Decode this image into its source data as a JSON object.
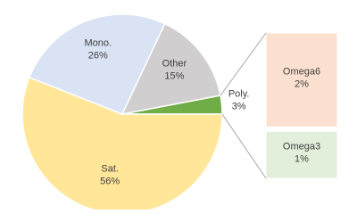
{
  "chart_data": {
    "type": "bar-of-pie",
    "categories": [
      "Poly.",
      "Sat.",
      "Mono.",
      "Other"
    ],
    "values": [
      3,
      56,
      26,
      15
    ],
    "value_labels": [
      "3%",
      "56%",
      "26%",
      "15%"
    ],
    "colors": [
      "#70ad47",
      "#ffe699",
      "#dae3f3",
      "#d0cece"
    ],
    "breakout": {
      "categories": [
        "Omega6",
        "Omega3"
      ],
      "values": [
        2,
        1
      ],
      "value_labels": [
        "2%",
        "1%"
      ],
      "colors": [
        "#fbe0d0",
        "#e2efda"
      ]
    }
  }
}
